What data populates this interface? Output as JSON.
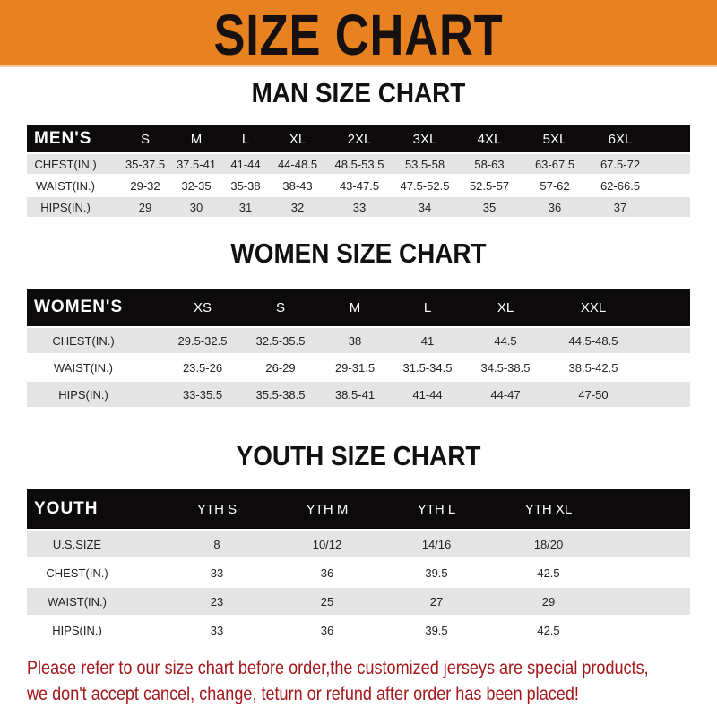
{
  "banner_title": "SIZE CHART",
  "colors": {
    "banner": "#e8811f",
    "header_row": "#0c0a0a",
    "stripe": "#e4e4e4",
    "notice": "#a3171a"
  },
  "men": {
    "title": "MAN SIZE CHART",
    "header": [
      "MEN'S",
      "S",
      "M",
      "L",
      "XL",
      "2XL",
      "3XL",
      "4XL",
      "5XL",
      "6XL"
    ],
    "rows": [
      [
        "CHEST(IN.)",
        "35-37.5",
        "37.5-41",
        "41-44",
        "44-48.5",
        "48.5-53.5",
        "53.5-58",
        "58-63",
        "63-67.5",
        "67.5-72"
      ],
      [
        "WAIST(IN.)",
        "29-32",
        "32-35",
        "35-38",
        "38-43",
        "43-47.5",
        "47.5-52.5",
        "52.5-57",
        "57-62",
        "62-66.5"
      ],
      [
        "HIPS(IN.)",
        "29",
        "30",
        "31",
        "32",
        "33",
        "34",
        "35",
        "36",
        "37"
      ]
    ]
  },
  "women": {
    "title": "WOMEN SIZE CHART",
    "header": [
      "WOMEN'S",
      "XS",
      "S",
      "M",
      "L",
      "XL",
      "XXL"
    ],
    "rows": [
      [
        "CHEST(IN.)",
        "29.5-32.5",
        "32.5-35.5",
        "38",
        "41",
        "44.5",
        "44.5-48.5"
      ],
      [
        "WAIST(IN.)",
        "23.5-26",
        "26-29",
        "29-31.5",
        "31.5-34.5",
        "34.5-38.5",
        "38.5-42.5"
      ],
      [
        "HIPS(IN.)",
        "33-35.5",
        "35.5-38.5",
        "38.5-41",
        "41-44",
        "44-47",
        "47-50"
      ]
    ]
  },
  "youth": {
    "title": "YOUTH SIZE CHART",
    "header": [
      "YOUTH",
      "YTH S",
      "YTH M",
      "YTH L",
      "YTH XL"
    ],
    "rows": [
      [
        "U.S.SIZE",
        "8",
        "10/12",
        "14/16",
        "18/20"
      ],
      [
        "CHEST(IN.)",
        "33",
        "36",
        "39.5",
        "42.5"
      ],
      [
        "WAIST(IN.)",
        "23",
        "25",
        "27",
        "29"
      ],
      [
        "HIPS(IN.)",
        "33",
        "36",
        "39.5",
        "42.5"
      ]
    ]
  },
  "notice": {
    "line1": "Please refer to our size chart before order,the customized jerseys are special products,",
    "line2": "we don't accept cancel, change, teturn or refund after order has been placed!"
  }
}
